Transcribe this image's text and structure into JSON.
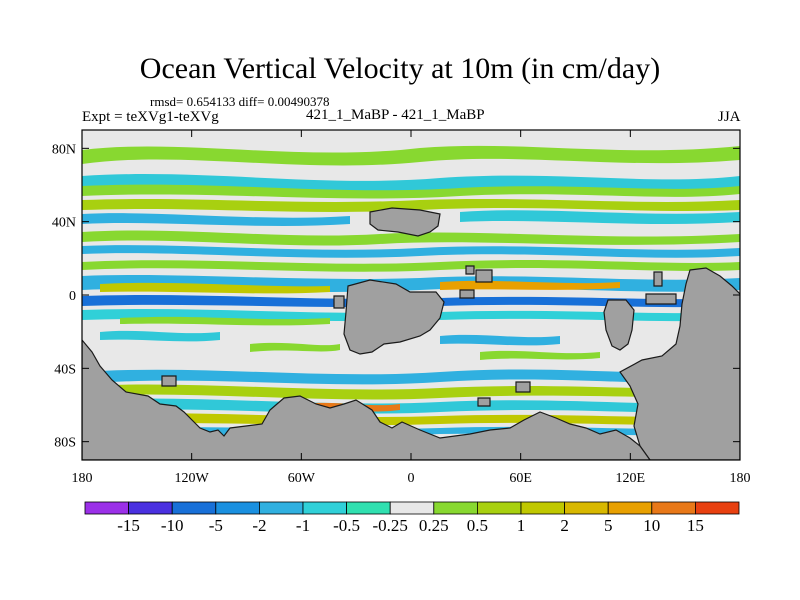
{
  "title": "Ocean Vertical Velocity at 10m (in cm/day)",
  "stats_text": "rmsd= 0.654133  diff= 0.00490378",
  "expt_text": "Expt = teXVg1-teXVg",
  "center_text": "421_1_MaBP - 421_1_MaBP",
  "season_text": "JJA",
  "map": {
    "type": "filled-contour-map",
    "lat_range": [
      -90,
      90
    ],
    "lon_range": [
      -180,
      180
    ],
    "lat_ticks": [
      {
        "lat": 80,
        "label": "80N"
      },
      {
        "lat": 40,
        "label": "40N"
      },
      {
        "lat": 0,
        "label": "0"
      },
      {
        "lat": -40,
        "label": "40S"
      },
      {
        "lat": -80,
        "label": "80S"
      }
    ],
    "lon_ticks": [
      {
        "lon": -180,
        "label": "180"
      },
      {
        "lon": -120,
        "label": "120W"
      },
      {
        "lon": -60,
        "label": "60W"
      },
      {
        "lon": 0,
        "label": "0"
      },
      {
        "lon": 60,
        "label": "60E"
      },
      {
        "lon": 120,
        "label": "120E"
      },
      {
        "lon": 180,
        "label": "180"
      }
    ],
    "land_color": "#a0a0a0"
  },
  "colorbar": {
    "colors": [
      "#9b30e8",
      "#4a30e0",
      "#1870d8",
      "#1a90e0",
      "#30b0e0",
      "#30d0d8",
      "#30e0b0",
      "#e8e8e8",
      "#88d830",
      "#a8d010",
      "#c0c800",
      "#d8b800",
      "#e8a000",
      "#e87818",
      "#e84010"
    ],
    "labels": [
      "-15",
      "-10",
      "-5",
      "-2",
      "-1",
      "-0.5",
      "-0.25",
      "0.25",
      "0.5",
      "1",
      "2",
      "5",
      "10",
      "15"
    ]
  }
}
